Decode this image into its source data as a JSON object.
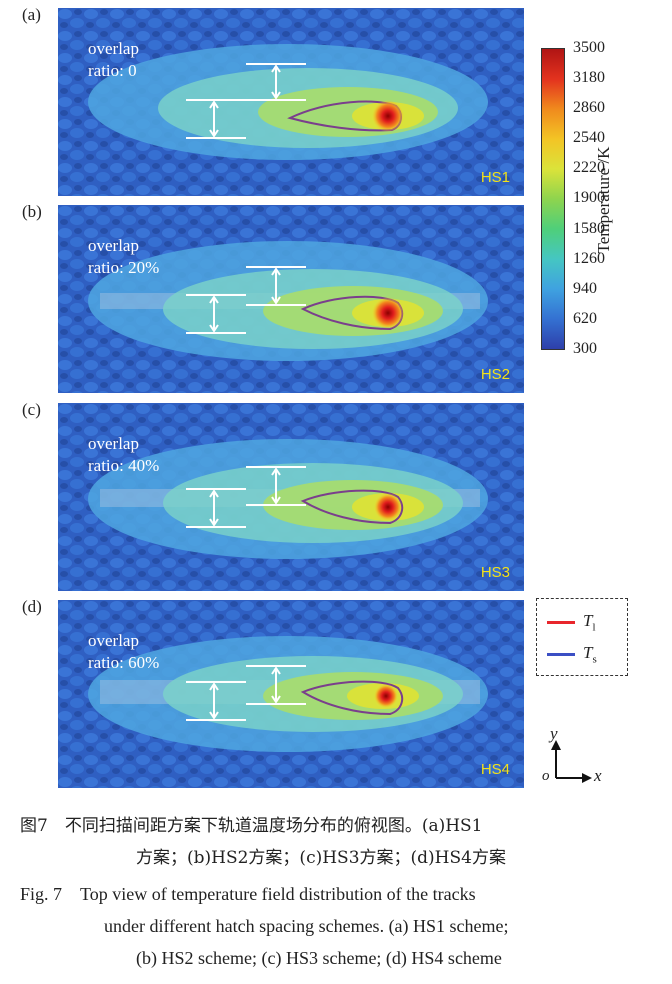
{
  "panels": [
    {
      "label": "(a)",
      "overlap": "overlap",
      "ratio": "ratio: 0",
      "scheme": "HS1"
    },
    {
      "label": "(b)",
      "overlap": "overlap",
      "ratio": "ratio: 20%",
      "scheme": "HS2"
    },
    {
      "label": "(c)",
      "overlap": "overlap",
      "ratio": "ratio: 40%",
      "scheme": "HS3"
    },
    {
      "label": "(d)",
      "overlap": "overlap",
      "ratio": "ratio: 60%",
      "scheme": "HS4"
    }
  ],
  "colorbar": {
    "title": "Temperature /K",
    "ticks": [
      "3500",
      "3180",
      "2860",
      "2540",
      "2220",
      "1900",
      "1580",
      "1260",
      "940",
      "620",
      "300"
    ]
  },
  "legend": {
    "t1": "T",
    "t1_sub": "l",
    "ts": "T",
    "ts_sub": "s",
    "t1_color": "#e8262c",
    "ts_color": "#3b4fc4"
  },
  "axes": {
    "o": "o",
    "x": "x",
    "y": "y"
  },
  "caption": {
    "cn_line1": "图7　不同扫描间距方案下轨道温度场分布的俯视图。(a)HS1",
    "cn_line2": "方案；(b)HS2方案；(c)HS3方案；(d)HS4方案",
    "en_line1": "Fig. 7　Top view of temperature field distribution of the tracks",
    "en_line2": "under different hatch spacing schemes. (a) HS1 scheme;",
    "en_line3": "(b) HS2 scheme; (c) HS3 scheme; (d) HS4 scheme"
  }
}
